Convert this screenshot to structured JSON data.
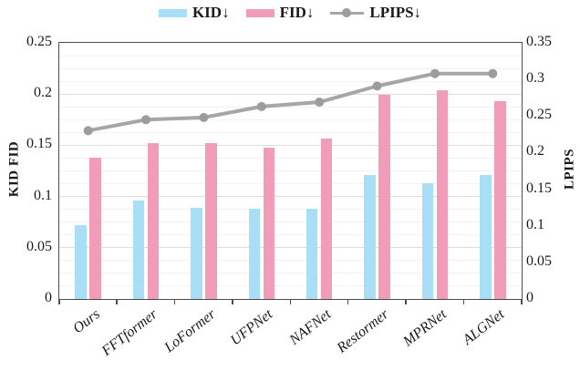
{
  "legend": [
    {
      "label": "KID↓",
      "color": "#a9def7",
      "type": "bar"
    },
    {
      "label": "FID↓",
      "color": "#f19dba",
      "type": "bar"
    },
    {
      "label": "LPIPS↓",
      "color": "#a6a6a6",
      "type": "line"
    }
  ],
  "left_axis": {
    "title": "KID  FID",
    "ticks": [
      "0",
      "0.05",
      "0.1",
      "0.15",
      "0.2",
      "0.25"
    ],
    "max": 0.25
  },
  "right_axis": {
    "title": "LPIPS",
    "ticks": [
      "0",
      "0.05",
      "0.1",
      "0.15",
      "0.2",
      "0.25",
      "0.3",
      "0.35"
    ],
    "max": 0.35
  },
  "chart_data": {
    "type": "bar",
    "subtype": "grouped-bars-with-line-dual-axis",
    "categories": [
      "Ours",
      "FFTformer",
      "LoFormer",
      "UFPNet",
      "NAFNet",
      "Restormer",
      "MPRNet",
      "ALGNet"
    ],
    "series": [
      {
        "name": "KID↓",
        "type": "bar",
        "axis": "left",
        "color": "#a9def7",
        "values": [
          0.072,
          0.096,
          0.089,
          0.088,
          0.088,
          0.121,
          0.113,
          0.121
        ]
      },
      {
        "name": "FID↓",
        "type": "bar",
        "axis": "left",
        "color": "#f19dba",
        "values": [
          0.138,
          0.152,
          0.152,
          0.148,
          0.157,
          0.199,
          0.204,
          0.193
        ]
      },
      {
        "name": "LPIPS↓",
        "type": "line",
        "axis": "right",
        "color": "#a6a6a6",
        "marker": "circle",
        "values": [
          0.23,
          0.245,
          0.248,
          0.263,
          0.269,
          0.291,
          0.308,
          0.308
        ]
      }
    ],
    "left_ylim": [
      0,
      0.25
    ],
    "right_ylim": [
      0,
      0.35
    ],
    "grid": true,
    "minor_grid_step_left": 0.0125,
    "major_grid_step_left": 0.05,
    "legend_position": "top-center"
  },
  "colors": {
    "axis_line": "#4d4d4d",
    "minor_grid": "#f2f2f2",
    "major_grid": "#dcdcdc",
    "line_marker": "#9c9c9c",
    "text": "#1a1a1a"
  }
}
